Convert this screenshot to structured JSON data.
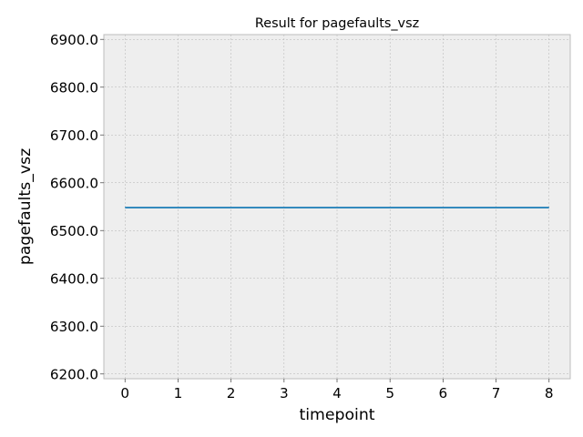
{
  "chart_data": {
    "type": "line",
    "title": "Result for pagefaults_vsz",
    "xlabel": "timepoint",
    "ylabel": "pagefaults_vsz",
    "x": [
      0,
      1,
      2,
      3,
      4,
      5,
      6,
      7,
      8
    ],
    "series": [
      {
        "values": [
          6548,
          6548,
          6548,
          6548,
          6548,
          6548,
          6548,
          6548,
          6548
        ]
      }
    ],
    "xlim": [
      -0.4,
      8.4
    ],
    "ylim": [
      6190,
      6910
    ],
    "xticks": [
      "0",
      "1",
      "2",
      "3",
      "4",
      "5",
      "6",
      "7",
      "8"
    ],
    "yticks": [
      "6200.0",
      "6300.0",
      "6400.0",
      "6500.0",
      "6600.0",
      "6700.0",
      "6800.0",
      "6900.0"
    ],
    "grid": true,
    "colors": {
      "line": "#348abd",
      "plot_background": "#eeeeee",
      "grid": "#b2b2b2",
      "frame": "#bcbcbc"
    }
  }
}
